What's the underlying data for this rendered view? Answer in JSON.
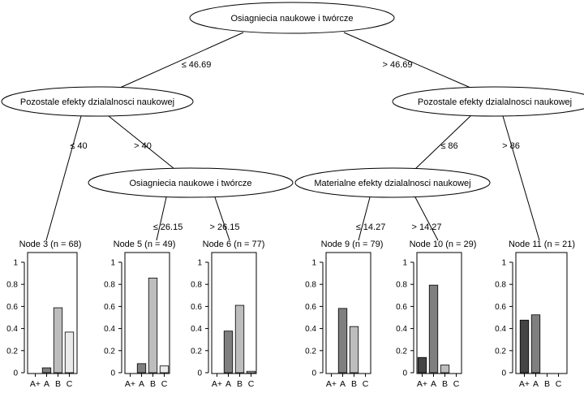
{
  "internal_nodes": [
    {
      "id": "n1",
      "label": "Osiagniecia naukowe i twórcze"
    },
    {
      "id": "n2",
      "label": "Pozostale efekty dzialalnosci naukowej"
    },
    {
      "id": "n4",
      "label": "Osiagniecia naukowe i twórcze"
    },
    {
      "id": "n7",
      "label": "Pozostale efekty dzialalnosci naukowej"
    },
    {
      "id": "n8",
      "label": "Materialne efekty dzialalnosci naukowej"
    }
  ],
  "edges": [
    {
      "id": "e1-2",
      "op": "≤",
      "value": "46.69"
    },
    {
      "id": "e1-7",
      "op": ">",
      "value": "46.69"
    },
    {
      "id": "e2-3",
      "op": "≤",
      "value": "40"
    },
    {
      "id": "e2-4",
      "op": ">",
      "value": "40"
    },
    {
      "id": "e4-5",
      "op": "≤",
      "value": "26.15"
    },
    {
      "id": "e4-6",
      "op": ">",
      "value": "26.15"
    },
    {
      "id": "e7-8",
      "op": "≤",
      "value": "86"
    },
    {
      "id": "e7-11",
      "op": ">",
      "value": "86"
    },
    {
      "id": "e8-9",
      "op": "≤",
      "value": "14.27"
    },
    {
      "id": "e8-10",
      "op": ">",
      "value": "14.27"
    }
  ],
  "class_labels": [
    "A+",
    "A",
    "B",
    "C"
  ],
  "class_colors": [
    "#444444",
    "#7f7f7f",
    "#bdbdbd",
    "#ebebeb"
  ],
  "y_ticks": [
    "0",
    "0.2",
    "0.4",
    "0.6",
    "0.8",
    "1"
  ],
  "chart_data": [
    {
      "type": "bar",
      "title": "Node 3 (n = 68)",
      "categories": [
        "A+",
        "A",
        "B",
        "C"
      ],
      "values": [
        0.0,
        0.044,
        0.588,
        0.368
      ],
      "ylim": [
        0,
        1
      ]
    },
    {
      "type": "bar",
      "title": "Node 5 (n = 49)",
      "categories": [
        "A+",
        "A",
        "B",
        "C"
      ],
      "values": [
        0.0,
        0.082,
        0.857,
        0.061
      ],
      "ylim": [
        0,
        1
      ]
    },
    {
      "type": "bar",
      "title": "Node 6 (n = 77)",
      "categories": [
        "A+",
        "A",
        "B",
        "C"
      ],
      "values": [
        0.0,
        0.377,
        0.61,
        0.013
      ],
      "ylim": [
        0,
        1
      ]
    },
    {
      "type": "bar",
      "title": "Node 9 (n = 79)",
      "categories": [
        "A+",
        "A",
        "B",
        "C"
      ],
      "values": [
        0.0,
        0.582,
        0.418,
        0.0
      ],
      "ylim": [
        0,
        1
      ]
    },
    {
      "type": "bar",
      "title": "Node 10 (n = 29)",
      "categories": [
        "A+",
        "A",
        "B",
        "C"
      ],
      "values": [
        0.138,
        0.793,
        0.069,
        0.0
      ],
      "ylim": [
        0,
        1
      ]
    },
    {
      "type": "bar",
      "title": "Node 11 (n = 21)",
      "categories": [
        "A+",
        "A",
        "B",
        "C"
      ],
      "values": [
        0.476,
        0.524,
        0.0,
        0.0
      ],
      "ylim": [
        0,
        1
      ]
    }
  ]
}
